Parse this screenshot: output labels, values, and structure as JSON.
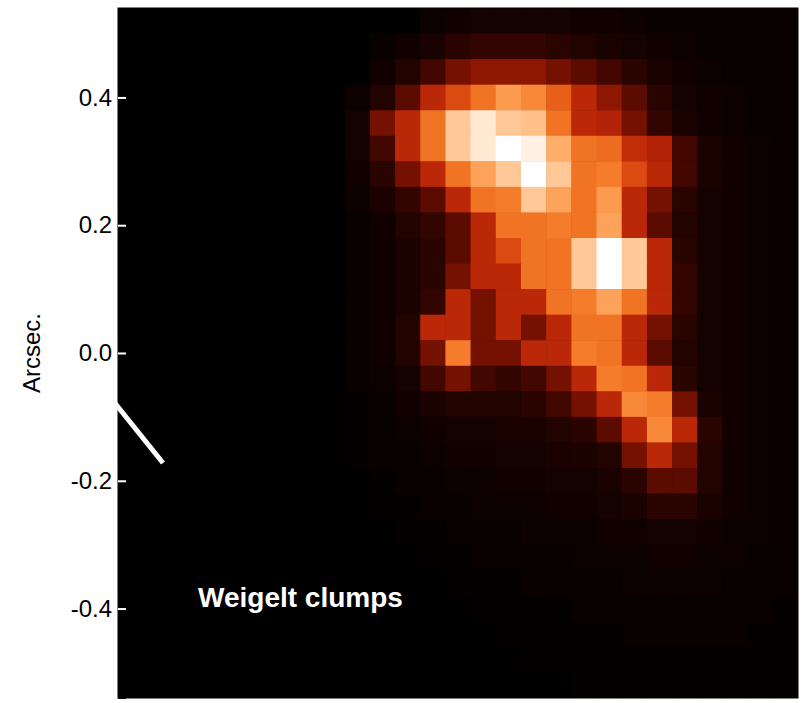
{
  "chart_data": {
    "type": "heatmap",
    "y_label": "Arcsec.",
    "annotation": "Weigelt clumps",
    "xlim": [
      -0.54,
      0.54
    ],
    "ylim": [
      -0.54,
      0.54
    ],
    "yticks": [
      {
        "value": 0.4,
        "label": "0.4"
      },
      {
        "value": 0.2,
        "label": "0.2"
      },
      {
        "value": 0,
        "label": "0.0"
      },
      {
        "value": -0.2,
        "label": "-0.2"
      },
      {
        "value": -0.4,
        "label": "-0.4"
      }
    ],
    "tick_labels": "y",
    "cells": [
      [
        0,
        0,
        0,
        0,
        0,
        0,
        0,
        0,
        0,
        0,
        0,
        0,
        0.03,
        0.04,
        0.05,
        0.05,
        0.05,
        0.05,
        0.04,
        0.04,
        0.03,
        0.02,
        0.02,
        0.02,
        0.02,
        0.02,
        0.02
      ],
      [
        0,
        0,
        0,
        0,
        0,
        0,
        0,
        0,
        0,
        0,
        0.02,
        0.04,
        0.06,
        0.1,
        0.12,
        0.12,
        0.12,
        0.1,
        0.08,
        0.06,
        0.05,
        0.04,
        0.03,
        0.02,
        0.02,
        0.02,
        0.02
      ],
      [
        0,
        0,
        0,
        0,
        0,
        0,
        0,
        0,
        0,
        0,
        0.04,
        0.08,
        0.15,
        0.25,
        0.3,
        0.3,
        0.3,
        0.25,
        0.2,
        0.15,
        0.1,
        0.06,
        0.04,
        0.03,
        0.02,
        0.02,
        0.02
      ],
      [
        0,
        0,
        0,
        0,
        0,
        0,
        0,
        0,
        0,
        0.03,
        0.08,
        0.2,
        0.4,
        0.5,
        0.6,
        0.7,
        0.65,
        0.55,
        0.4,
        0.3,
        0.2,
        0.1,
        0.05,
        0.04,
        0.03,
        0.02,
        0.02
      ],
      [
        0,
        0,
        0,
        0,
        0,
        0,
        0,
        0,
        0,
        0.05,
        0.25,
        0.4,
        0.6,
        0.82,
        0.92,
        0.82,
        0.8,
        0.6,
        0.4,
        0.38,
        0.25,
        0.12,
        0.06,
        0.04,
        0.03,
        0.02,
        0.02
      ],
      [
        0,
        0,
        0,
        0,
        0,
        0,
        0,
        0,
        0,
        0.05,
        0.15,
        0.4,
        0.6,
        0.82,
        0.92,
        1.0,
        0.95,
        0.75,
        0.6,
        0.58,
        0.42,
        0.38,
        0.15,
        0.06,
        0.04,
        0.03,
        0.02
      ],
      [
        0,
        0,
        0,
        0,
        0,
        0,
        0,
        0,
        0,
        0.04,
        0.1,
        0.25,
        0.4,
        0.6,
        0.72,
        0.82,
        1.0,
        0.82,
        0.6,
        0.62,
        0.5,
        0.4,
        0.15,
        0.06,
        0.04,
        0.03,
        0.02
      ],
      [
        0,
        0,
        0,
        0,
        0,
        0,
        0,
        0,
        0,
        0.03,
        0.06,
        0.12,
        0.2,
        0.4,
        0.6,
        0.62,
        0.82,
        0.72,
        0.6,
        0.7,
        0.4,
        0.25,
        0.1,
        0.05,
        0.04,
        0.03,
        0.02
      ],
      [
        0,
        0,
        0,
        0,
        0,
        0,
        0,
        0,
        0,
        0.02,
        0.04,
        0.08,
        0.12,
        0.2,
        0.4,
        0.6,
        0.6,
        0.62,
        0.6,
        0.72,
        0.4,
        0.2,
        0.08,
        0.05,
        0.04,
        0.03,
        0.02
      ],
      [
        0,
        0,
        0,
        0,
        0,
        0,
        0,
        0,
        0,
        0.02,
        0.04,
        0.06,
        0.1,
        0.2,
        0.4,
        0.5,
        0.6,
        0.6,
        0.82,
        1.0,
        0.82,
        0.4,
        0.1,
        0.05,
        0.04,
        0.03,
        0.02
      ],
      [
        0,
        0,
        0,
        0,
        0,
        0,
        0,
        0,
        0,
        0.02,
        0.04,
        0.06,
        0.1,
        0.25,
        0.4,
        0.4,
        0.6,
        0.6,
        0.82,
        1.0,
        0.82,
        0.4,
        0.12,
        0.05,
        0.04,
        0.03,
        0.02
      ],
      [
        0,
        0,
        0,
        0,
        0,
        0,
        0,
        0,
        0,
        0.02,
        0.04,
        0.06,
        0.12,
        0.4,
        0.25,
        0.4,
        0.4,
        0.6,
        0.62,
        0.72,
        0.6,
        0.4,
        0.12,
        0.05,
        0.04,
        0.03,
        0.02
      ],
      [
        0,
        0,
        0,
        0,
        0,
        0,
        0,
        0,
        0,
        0.02,
        0.04,
        0.08,
        0.4,
        0.4,
        0.25,
        0.4,
        0.25,
        0.4,
        0.6,
        0.6,
        0.4,
        0.25,
        0.1,
        0.05,
        0.04,
        0.03,
        0.02
      ],
      [
        0,
        0,
        0,
        0,
        0,
        0,
        0,
        0,
        0,
        0.02,
        0.04,
        0.08,
        0.25,
        0.62,
        0.25,
        0.25,
        0.4,
        0.4,
        0.62,
        0.6,
        0.4,
        0.2,
        0.08,
        0.05,
        0.04,
        0.03,
        0.02
      ],
      [
        0,
        0,
        0,
        0,
        0,
        0,
        0,
        0,
        0,
        0.02,
        0.03,
        0.05,
        0.15,
        0.25,
        0.15,
        0.12,
        0.15,
        0.25,
        0.4,
        0.62,
        0.6,
        0.4,
        0.1,
        0.05,
        0.04,
        0.03,
        0.02
      ],
      [
        0,
        0,
        0,
        0,
        0,
        0,
        0,
        0,
        0,
        0.01,
        0.02,
        0.04,
        0.06,
        0.08,
        0.08,
        0.08,
        0.1,
        0.15,
        0.25,
        0.4,
        0.65,
        0.62,
        0.25,
        0.06,
        0.04,
        0.03,
        0.02
      ],
      [
        0,
        0,
        0,
        0,
        0,
        0,
        0,
        0,
        0,
        0.01,
        0.02,
        0.03,
        0.04,
        0.05,
        0.05,
        0.06,
        0.06,
        0.08,
        0.1,
        0.2,
        0.4,
        0.65,
        0.4,
        0.1,
        0.04,
        0.03,
        0.02
      ],
      [
        0,
        0,
        0,
        0,
        0,
        0,
        0,
        0,
        0,
        0.01,
        0.02,
        0.02,
        0.03,
        0.04,
        0.04,
        0.05,
        0.05,
        0.06,
        0.07,
        0.08,
        0.25,
        0.4,
        0.25,
        0.08,
        0.04,
        0.03,
        0.02
      ],
      [
        0,
        0,
        0,
        0,
        0,
        0,
        0,
        0,
        0,
        0,
        0.01,
        0.02,
        0.02,
        0.03,
        0.03,
        0.04,
        0.04,
        0.05,
        0.05,
        0.06,
        0.1,
        0.2,
        0.2,
        0.08,
        0.04,
        0.03,
        0.02
      ],
      [
        0,
        0,
        0,
        0,
        0,
        0,
        0,
        0,
        0,
        0,
        0.01,
        0.01,
        0.02,
        0.02,
        0.03,
        0.03,
        0.03,
        0.04,
        0.04,
        0.05,
        0.06,
        0.1,
        0.1,
        0.06,
        0.04,
        0.03,
        0.02
      ],
      [
        0,
        0,
        0,
        0,
        0,
        0,
        0,
        0,
        0,
        0,
        0,
        0.01,
        0.01,
        0.02,
        0.02,
        0.02,
        0.03,
        0.03,
        0.03,
        0.04,
        0.04,
        0.05,
        0.05,
        0.04,
        0.03,
        0.03,
        0.02
      ],
      [
        0,
        0,
        0,
        0,
        0,
        0,
        0,
        0,
        0,
        0,
        0,
        0,
        0.01,
        0.01,
        0.02,
        0.02,
        0.02,
        0.02,
        0.03,
        0.03,
        0.03,
        0.04,
        0.04,
        0.03,
        0.03,
        0.02,
        0.02
      ],
      [
        0,
        0,
        0,
        0,
        0,
        0,
        0,
        0,
        0,
        0,
        0,
        0,
        0,
        0.01,
        0.01,
        0.01,
        0.02,
        0.02,
        0.02,
        0.02,
        0.03,
        0.03,
        0.03,
        0.03,
        0.02,
        0.02,
        0.02
      ],
      [
        0,
        0,
        0,
        0,
        0,
        0,
        0,
        0,
        0,
        0,
        0,
        0,
        0,
        0,
        0.01,
        0.01,
        0.01,
        0.01,
        0.02,
        0.02,
        0.02,
        0.02,
        0.02,
        0.02,
        0.02,
        0.02,
        0.01
      ],
      [
        0,
        0,
        0,
        0,
        0,
        0,
        0,
        0,
        0,
        0,
        0,
        0,
        0,
        0,
        0,
        0.01,
        0.01,
        0.01,
        0.01,
        0.01,
        0.02,
        0.02,
        0.02,
        0.02,
        0.02,
        0.01,
        0.01
      ],
      [
        0,
        0,
        0,
        0,
        0,
        0,
        0,
        0,
        0,
        0,
        0,
        0,
        0,
        0,
        0,
        0,
        0.01,
        0.01,
        0.01,
        0.01,
        0.01,
        0.01,
        0.01,
        0.01,
        0.01,
        0.01,
        0.01
      ],
      [
        0,
        0,
        0,
        0,
        0,
        0,
        0,
        0,
        0,
        0,
        0,
        0,
        0,
        0,
        0,
        0,
        0,
        0,
        0.01,
        0.01,
        0.01,
        0.01,
        0.01,
        0.01,
        0.01,
        0.01,
        0.01
      ]
    ]
  }
}
